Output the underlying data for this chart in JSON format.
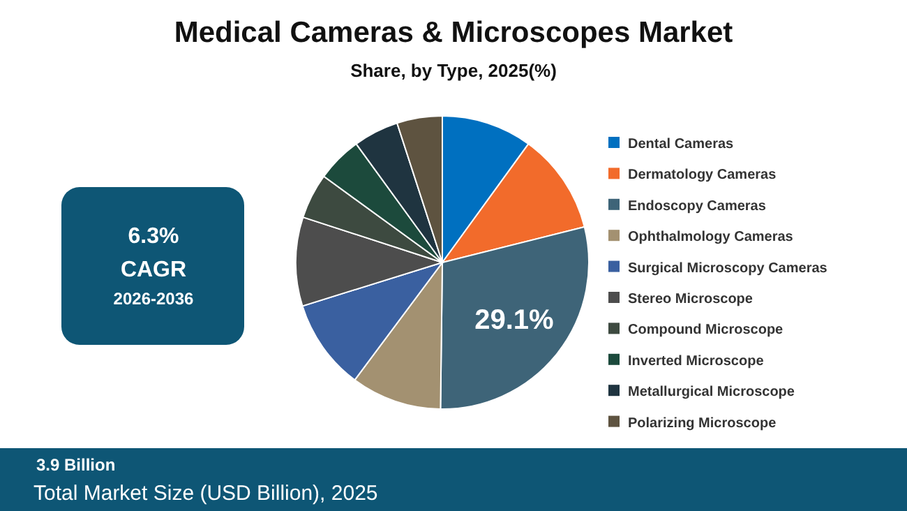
{
  "chart_data": {
    "type": "pie",
    "title": "Medical Cameras & Microscopes Market",
    "subtitle": "Share, by Type, 2025(%)",
    "categories": [
      "Dental Cameras",
      "Dermatology Cameras",
      "Endoscopy Cameras",
      "Ophthalmology Cameras",
      "Surgical Microscopy Cameras",
      "Stereo Microscope",
      "Compound Microscope",
      "Inverted Microscope",
      "Metallurgical Microscope",
      "Polarizing Microscope"
    ],
    "values": [
      10,
      11.1,
      29.1,
      10,
      10,
      9.8,
      5,
      5,
      5,
      5
    ],
    "colors": [
      "#0070c0",
      "#f26b2b",
      "#3e6478",
      "#a39171",
      "#3a60a0",
      "#4d4d4d",
      "#3d4a40",
      "#1c4a3c",
      "#1f3440",
      "#5e5340"
    ],
    "value_labels": [
      null,
      null,
      "29.1%",
      null,
      null,
      null,
      null,
      null,
      null,
      null
    ],
    "legend": "right",
    "annotations": [
      "6.3%",
      "CAGR",
      "2026-2036",
      "3.9 Billion",
      "Total Market Size (USD Billion), 2025"
    ]
  }
}
